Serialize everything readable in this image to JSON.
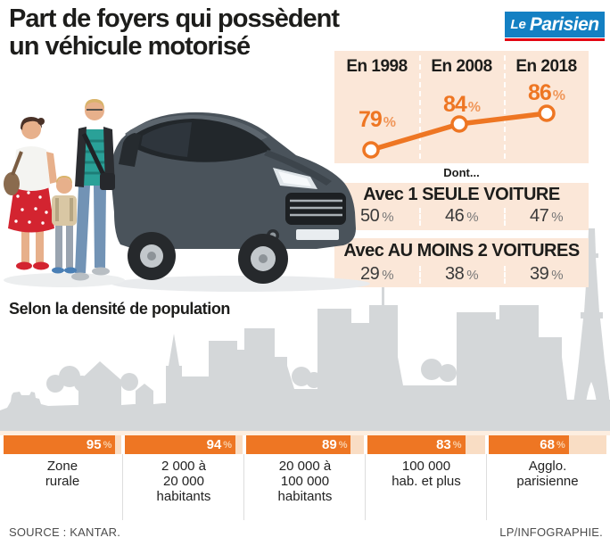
{
  "header": {
    "title_line1": "Part de foyers qui possèdent",
    "title_line2": "un véhicule motorisé",
    "logo": {
      "word1": "Le",
      "word2": "Parisien"
    }
  },
  "chart_data": [
    {
      "type": "line",
      "title": "Part de foyers qui possèdent un véhicule motorisé",
      "categories": [
        "En 1998",
        "En 2008",
        "En 2018"
      ],
      "values": [
        79,
        84,
        86
      ],
      "unit": "%",
      "ylim": [
        75,
        90
      ],
      "grid": false,
      "legend_position": "none",
      "annotation": "Dont...",
      "sub_series": [
        {
          "label": "Avec 1 SEULE VOITURE",
          "values": [
            50,
            46,
            47
          ]
        },
        {
          "label": "Avec AU MOINS 2 VOITURES",
          "values": [
            29,
            38,
            39
          ]
        }
      ]
    },
    {
      "type": "bar",
      "title": "Selon la densité de population",
      "categories": [
        "Zone rurale",
        "2 000 à 20 000 habitants",
        "20 000 à 100 000 habitants",
        "100 000 hab. et plus",
        "Agglo. parisienne"
      ],
      "values": [
        95,
        94,
        89,
        83,
        68
      ],
      "unit": "%",
      "xlim": [
        0,
        100
      ],
      "display_labels": [
        "Zone\nrurale",
        "2 000 à\n20 000\nhabitants",
        "20 000 à\n100 000\nhabitants",
        "100 000\nhab. et plus",
        "Agglo.\nparisienne"
      ]
    }
  ],
  "footer": {
    "source": "SOURCE : KANTAR.",
    "credit": "LP/INFOGRAPHIE."
  },
  "colors": {
    "orange": "#ee7623",
    "panel_peach": "#fbe7d8",
    "bar_track_peach": "#f9ddc4",
    "skyline_gray": "#d4d7d9",
    "logo_blue": "#1480c3",
    "logo_red": "#e30613"
  }
}
